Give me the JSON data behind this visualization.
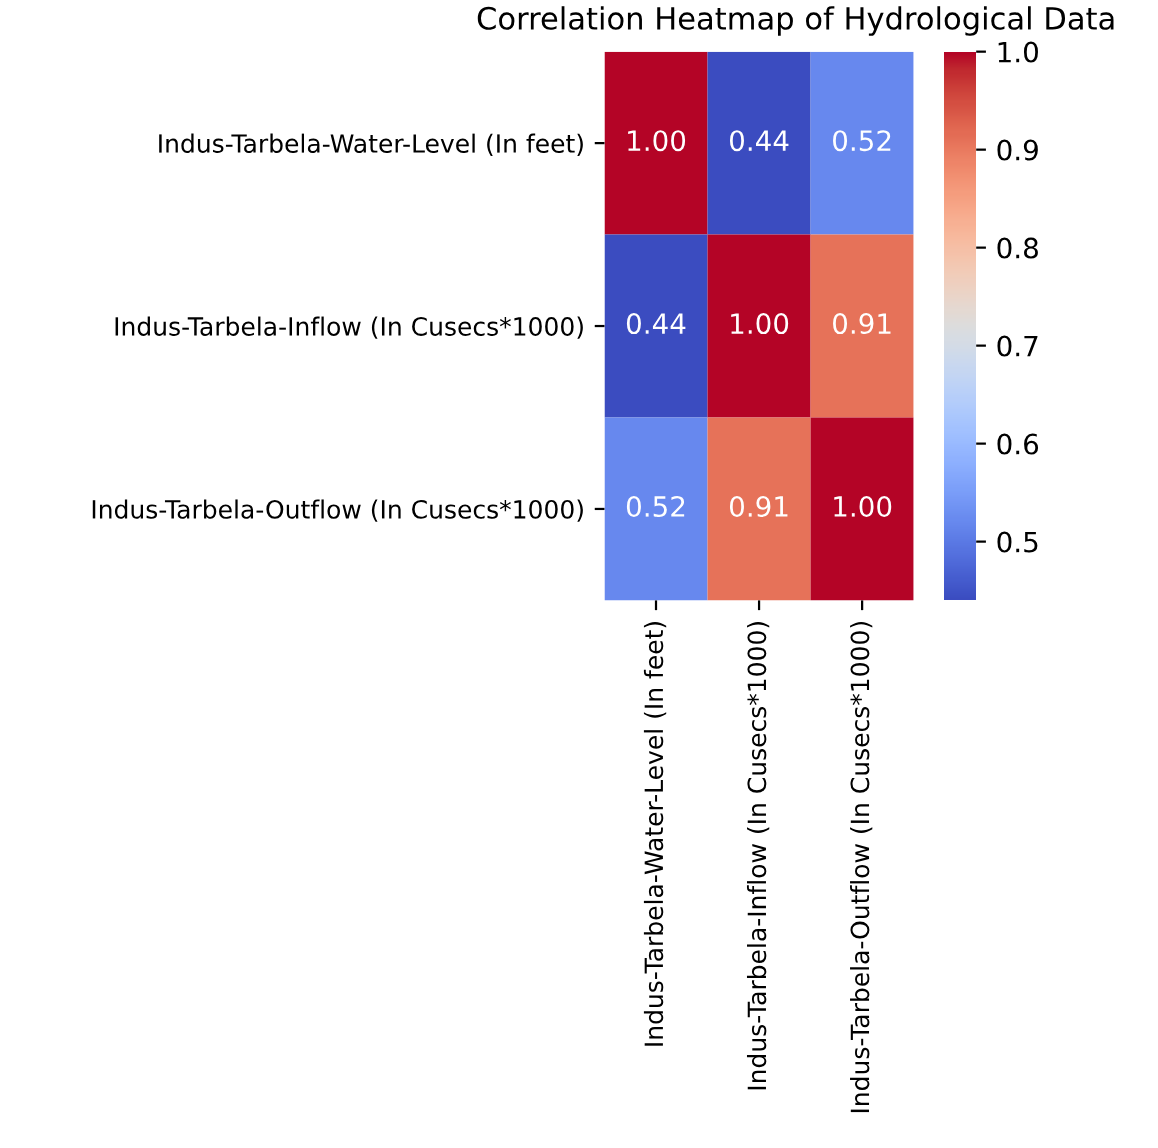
{
  "chart_data": {
    "type": "heatmap",
    "title": "Correlation Heatmap of Hydrological Data",
    "categories": [
      "Indus-Tarbela-Water-Level (In feet)",
      "Indus-Tarbela-Inflow (In Cusecs*1000)",
      "Indus-Tarbela-Outflow (In Cusecs*1000)"
    ],
    "y_categories": [
      "Indus-Tarbela-Water-Level (In feet)",
      "Indus-Tarbela-Inflow (In Cusecs*1000)",
      "Indus-Tarbela-Outflow (In Cusecs*1000)"
    ],
    "cells": [
      [
        1.0,
        0.44,
        0.52
      ],
      [
        0.44,
        1.0,
        0.91
      ],
      [
        0.52,
        0.91,
        1.0
      ]
    ],
    "cell_labels": [
      [
        "1.00",
        "0.44",
        "0.52"
      ],
      [
        "0.44",
        "1.00",
        "0.91"
      ],
      [
        "0.52",
        "0.91",
        "1.00"
      ]
    ],
    "clim": [
      0.44,
      1.0
    ],
    "cticks": [
      0.5,
      0.6,
      0.7,
      0.8,
      0.9,
      {
        "value": 1,
        "label": "1.0"
      }
    ]
  }
}
